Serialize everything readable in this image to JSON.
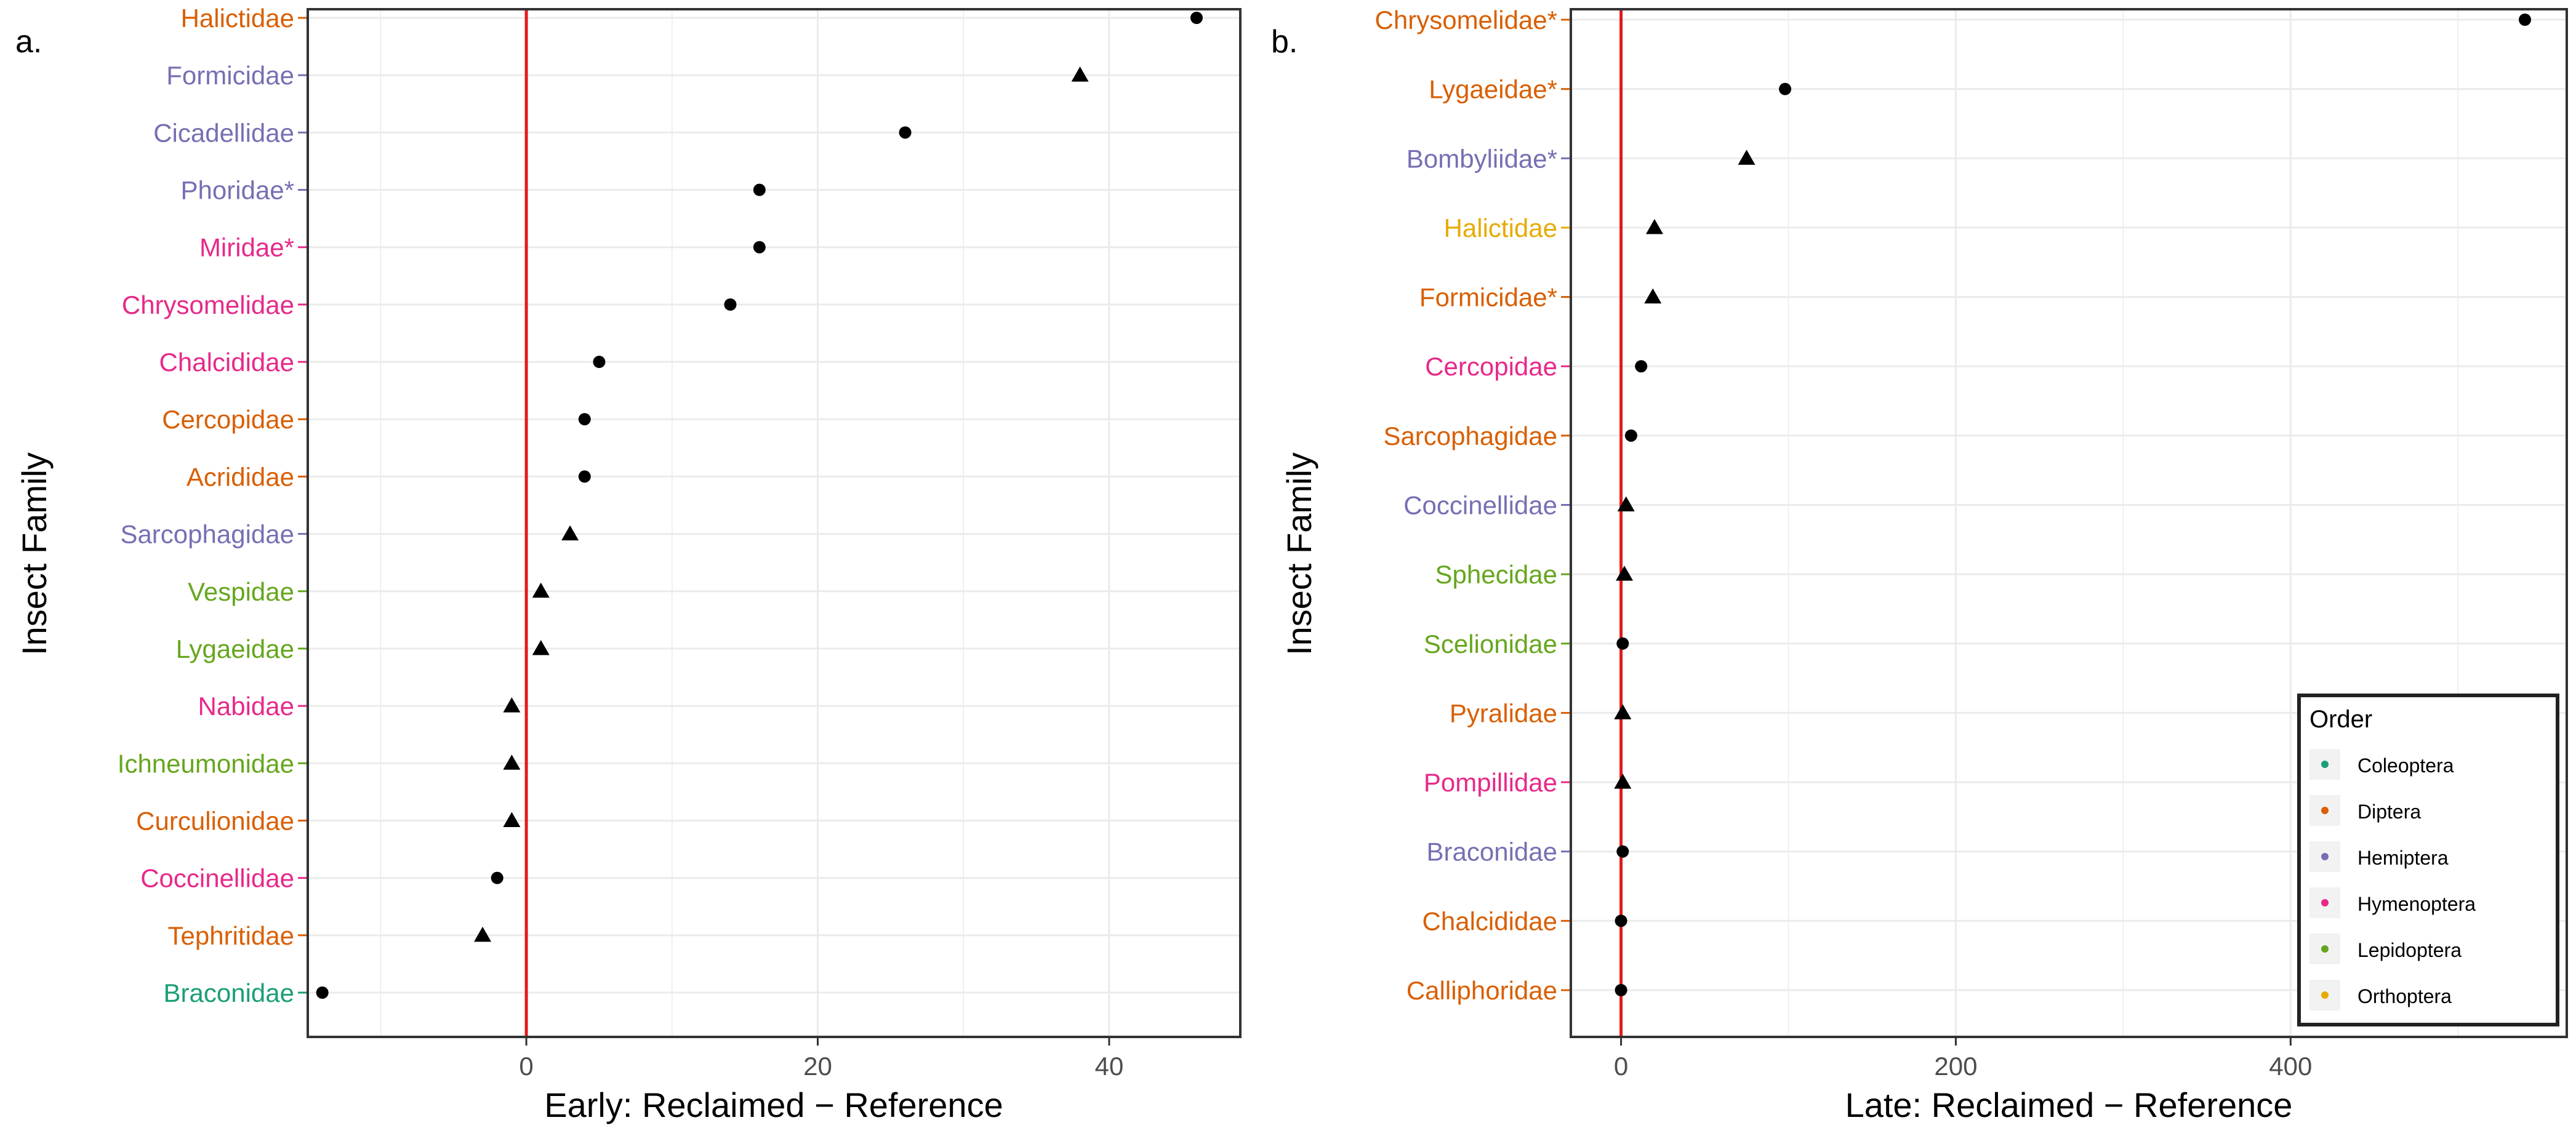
{
  "colors": {
    "Coleoptera": "#1b9e77",
    "Diptera": "#d95f02",
    "Hemiptera": "#7570b3",
    "Hymenoptera": "#e7298a",
    "Lepidoptera": "#66a61e",
    "Orthoptera": "#e6ab02",
    "family_Halictidae_a": "#d95f02",
    "family_Formicidae_a": "#7570b3",
    "family_Cicadellidae": "#7570b3",
    "family_Phoridae": "#7570b3",
    "family_Miridae": "#e7298a",
    "family_Chrysomelidae_a": "#e7298a",
    "family_Chalcididae_a": "#e7298a",
    "family_Cercopidae_a": "#d95f02",
    "family_Acrididae": "#d95f02",
    "family_Sarcophagidae_a": "#7570b3",
    "family_Vespidae": "#66a61e",
    "family_Lygaeidae_a": "#66a61e",
    "family_Nabidae": "#e7298a",
    "family_Ichneumonidae": "#66a61e",
    "family_Curculionidae": "#d95f02",
    "family_Coccinellidae_a": "#e7298a",
    "family_Tephritidae": "#d95f02",
    "family_Braconidae_a": "#1b9e77",
    "zero_line": "#e31a1c",
    "marker": "#000000"
  },
  "chart_data": [
    {
      "type": "scatter",
      "panel_label": "a.",
      "xlabel": "Early: Reclaimed − Reference",
      "ylabel": "Insect Family",
      "xlim": [
        -15,
        49
      ],
      "xticks": [
        0,
        20,
        40
      ],
      "xtick_labels": [
        "0",
        "20",
        "40"
      ],
      "grid": true,
      "reference_line_x": 0,
      "categories": [
        "Halictidae",
        "Formicidae",
        "Cicadellidae",
        "Phoridae*",
        "Miridae*",
        "Chrysomelidae",
        "Chalcididae",
        "Cercopidae",
        "Acrididae",
        "Sarcophagidae",
        "Vespidae",
        "Lygaeidae",
        "Nabidae",
        "Ichneumonidae",
        "Curculionidae",
        "Coccinellidae",
        "Tephritidae",
        "Braconidae"
      ],
      "label_colors": [
        "#d95f02",
        "#7570b3",
        "#7570b3",
        "#7570b3",
        "#e7298a",
        "#e7298a",
        "#e7298a",
        "#d95f02",
        "#d95f02",
        "#7570b3",
        "#66a61e",
        "#66a61e",
        "#e7298a",
        "#66a61e",
        "#d95f02",
        "#e7298a",
        "#d95f02",
        "#1b9e77"
      ],
      "values": [
        46,
        38,
        26,
        16,
        16,
        14,
        5,
        4,
        4,
        3,
        1,
        1,
        -1,
        -1,
        -1,
        -2,
        -3,
        -14
      ],
      "shapes": [
        "circle",
        "triangle",
        "circle",
        "circle",
        "circle",
        "circle",
        "circle",
        "circle",
        "circle",
        "triangle",
        "triangle",
        "triangle",
        "triangle",
        "triangle",
        "triangle",
        "circle",
        "triangle",
        "circle"
      ]
    },
    {
      "type": "scatter",
      "panel_label": "b.",
      "xlabel": "Late: Reclaimed − Reference",
      "ylabel": "Insect Family",
      "xlim": [
        -30,
        565
      ],
      "xticks": [
        0,
        200,
        400
      ],
      "xtick_labels": [
        "0",
        "200",
        "400"
      ],
      "grid": true,
      "reference_line_x": 0,
      "categories": [
        "Chrysomelidae*",
        "Lygaeidae*",
        "Bombyliidae*",
        "Halictidae",
        "Formicidae*",
        "Cercopidae",
        "Sarcophagidae",
        "Coccinellidae",
        "Sphecidae",
        "Scelionidae",
        "Pyralidae",
        "Pompillidae",
        "Braconidae",
        "Chalcididae",
        "Calliphoridae"
      ],
      "label_colors": [
        "#d95f02",
        "#d95f02",
        "#7570b3",
        "#e6ab02",
        "#d95f02",
        "#e7298a",
        "#d95f02",
        "#7570b3",
        "#66a61e",
        "#66a61e",
        "#d95f02",
        "#e7298a",
        "#7570b3",
        "#d95f02",
        "#d95f02"
      ],
      "values": [
        540,
        98,
        75,
        20,
        19,
        12,
        6,
        3,
        2,
        1,
        1,
        1,
        1,
        0,
        0
      ],
      "shapes": [
        "circle",
        "circle",
        "triangle",
        "triangle",
        "triangle",
        "circle",
        "circle",
        "triangle",
        "triangle",
        "circle",
        "triangle",
        "triangle",
        "circle",
        "circle",
        "circle"
      ]
    }
  ],
  "legend": {
    "title": "Order",
    "placement": "bottom-right",
    "items": [
      {
        "label": "Coleoptera",
        "color": "#1b9e77"
      },
      {
        "label": "Diptera",
        "color": "#d95f02"
      },
      {
        "label": "Hemiptera",
        "color": "#7570b3"
      },
      {
        "label": "Hymenoptera",
        "color": "#e7298a"
      },
      {
        "label": "Lepidoptera",
        "color": "#66a61e"
      },
      {
        "label": "Orthoptera",
        "color": "#e6ab02"
      }
    ]
  }
}
